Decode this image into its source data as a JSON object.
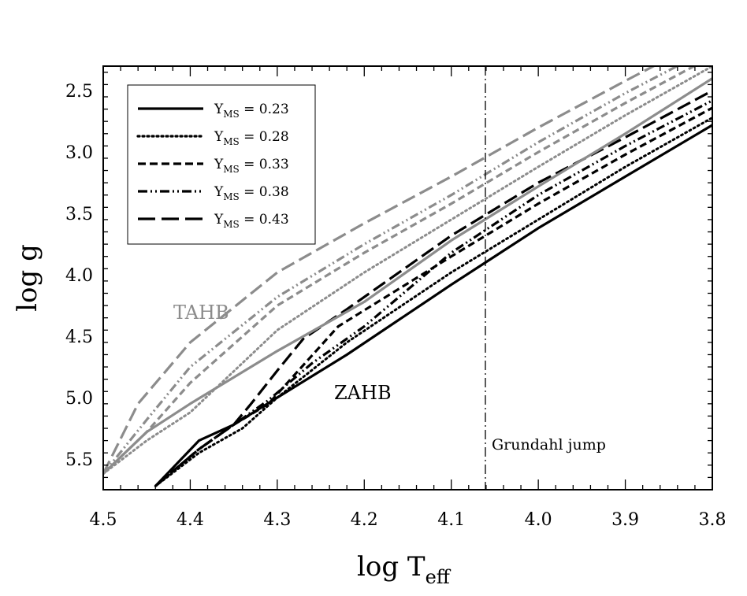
{
  "chart_data": {
    "type": "line",
    "xlabel": "log T",
    "xlabel_sub": "eff",
    "ylabel": "log g",
    "xlim": [
      4.5,
      3.8
    ],
    "ylim": [
      5.75,
      2.3
    ],
    "x_ticks": [
      "4.5",
      "4.4",
      "4.3",
      "4.2",
      "4.1",
      "4.0",
      "3.9",
      "3.8"
    ],
    "y_ticks": [
      "2.5",
      "3.0",
      "3.5",
      "4.0",
      "4.5",
      "5.0",
      "5.5"
    ],
    "legend": {
      "placement": "top-left",
      "symbol": "Y",
      "subscript": "MS",
      "entries": [
        {
          "value": "= 0.23",
          "dash": "solid"
        },
        {
          "value": "= 0.28",
          "dash": "dotted"
        },
        {
          "value": "= 0.33",
          "dash": "short-dash"
        },
        {
          "value": "= 0.38",
          "dash": "dash-dot-dot"
        },
        {
          "value": "= 0.43",
          "dash": "long-dash"
        }
      ]
    },
    "colors": {
      "zahb": "#000000",
      "tahb": "#8c8c8c"
    },
    "annotations": {
      "tahb": "TAHB",
      "zahb": "ZAHB",
      "grundahl": "Grundahl jump",
      "grundahl_x": 4.06
    },
    "series": [
      {
        "group": "ZAHB",
        "y_ms": "0.23",
        "dash": "solid",
        "points": [
          [
            4.44,
            5.72
          ],
          [
            4.39,
            5.35
          ],
          [
            4.35,
            5.22
          ],
          [
            4.3,
            5.0
          ],
          [
            4.22,
            4.65
          ],
          [
            4.1,
            4.08
          ],
          [
            4.0,
            3.62
          ],
          [
            3.9,
            3.2
          ],
          [
            3.8,
            2.78
          ]
        ]
      },
      {
        "group": "ZAHB",
        "y_ms": "0.28",
        "dash": "dotted",
        "points": [
          [
            4.44,
            5.72
          ],
          [
            4.39,
            5.45
          ],
          [
            4.34,
            5.25
          ],
          [
            4.3,
            5.0
          ],
          [
            4.22,
            4.55
          ],
          [
            4.1,
            3.98
          ],
          [
            4.0,
            3.55
          ],
          [
            3.9,
            3.12
          ],
          [
            3.8,
            2.72
          ]
        ]
      },
      {
        "group": "ZAHB",
        "y_ms": "0.33",
        "dash": "short-dash",
        "points": [
          [
            4.44,
            5.72
          ],
          [
            4.39,
            5.42
          ],
          [
            4.35,
            5.22
          ],
          [
            4.31,
            5.05
          ],
          [
            4.23,
            4.42
          ],
          [
            4.1,
            3.85
          ],
          [
            4.0,
            3.42
          ],
          [
            3.9,
            3.02
          ],
          [
            3.8,
            2.64
          ]
        ]
      },
      {
        "group": "ZAHB",
        "y_ms": "0.38",
        "dash": "dash-dot-dot",
        "points": [
          [
            4.44,
            5.72
          ],
          [
            4.39,
            5.42
          ],
          [
            4.35,
            5.22
          ],
          [
            4.31,
            5.02
          ],
          [
            4.26,
            4.72
          ],
          [
            4.2,
            4.42
          ],
          [
            4.1,
            3.82
          ],
          [
            4.0,
            3.35
          ],
          [
            3.9,
            2.95
          ],
          [
            3.8,
            2.58
          ]
        ]
      },
      {
        "group": "ZAHB",
        "y_ms": "0.43",
        "dash": "long-dash",
        "points": [
          [
            4.44,
            5.72
          ],
          [
            4.39,
            5.42
          ],
          [
            4.35,
            5.22
          ],
          [
            4.33,
            5.05
          ],
          [
            4.3,
            4.78
          ],
          [
            4.27,
            4.52
          ],
          [
            4.22,
            4.28
          ],
          [
            4.1,
            3.68
          ],
          [
            4.0,
            3.25
          ],
          [
            3.9,
            2.88
          ],
          [
            3.8,
            2.5
          ]
        ]
      },
      {
        "group": "TAHB",
        "y_ms": "0.23",
        "dash": "solid",
        "points": [
          [
            4.5,
            5.62
          ],
          [
            4.45,
            5.28
          ],
          [
            4.4,
            5.05
          ],
          [
            4.3,
            4.62
          ],
          [
            4.2,
            4.22
          ],
          [
            4.1,
            3.72
          ],
          [
            4.0,
            3.28
          ],
          [
            3.9,
            2.85
          ],
          [
            3.8,
            2.4
          ]
        ]
      },
      {
        "group": "TAHB",
        "y_ms": "0.28",
        "dash": "dotted",
        "points": [
          [
            4.5,
            5.62
          ],
          [
            4.45,
            5.35
          ],
          [
            4.4,
            5.12
          ],
          [
            4.3,
            4.45
          ],
          [
            4.2,
            3.98
          ],
          [
            4.1,
            3.55
          ],
          [
            4.0,
            3.12
          ],
          [
            3.9,
            2.7
          ],
          [
            3.8,
            2.3
          ]
        ]
      },
      {
        "group": "TAHB",
        "y_ms": "0.33",
        "dash": "short-dash",
        "points": [
          [
            4.5,
            5.62
          ],
          [
            4.45,
            5.28
          ],
          [
            4.4,
            4.88
          ],
          [
            4.3,
            4.25
          ],
          [
            4.2,
            3.82
          ],
          [
            4.1,
            3.42
          ],
          [
            4.0,
            3.0
          ],
          [
            3.9,
            2.6
          ],
          [
            3.8,
            2.22
          ]
        ]
      },
      {
        "group": "TAHB",
        "y_ms": "0.38",
        "dash": "dash-dot-dot",
        "points": [
          [
            4.5,
            5.62
          ],
          [
            4.45,
            5.18
          ],
          [
            4.4,
            4.75
          ],
          [
            4.3,
            4.18
          ],
          [
            4.2,
            3.75
          ],
          [
            4.1,
            3.35
          ],
          [
            4.0,
            2.92
          ],
          [
            3.9,
            2.52
          ],
          [
            3.8,
            2.15
          ]
        ]
      },
      {
        "group": "TAHB",
        "y_ms": "0.43",
        "dash": "long-dash",
        "points": [
          [
            4.5,
            5.62
          ],
          [
            4.46,
            5.05
          ],
          [
            4.4,
            4.55
          ],
          [
            4.3,
            3.98
          ],
          [
            4.2,
            3.58
          ],
          [
            4.1,
            3.2
          ],
          [
            4.0,
            2.8
          ],
          [
            3.9,
            2.42
          ],
          [
            3.8,
            2.05
          ]
        ]
      }
    ]
  }
}
